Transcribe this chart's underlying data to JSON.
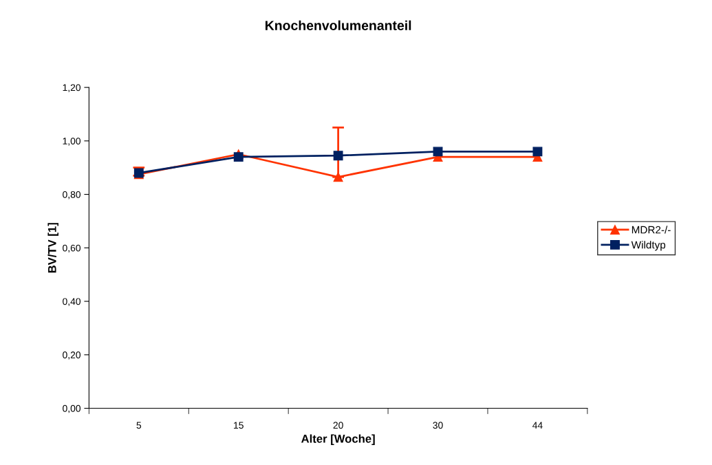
{
  "chart_data": {
    "type": "line",
    "title": "Knochenvolumenanteil",
    "xlabel": "Alter [Woche]",
    "ylabel": "BV/TV [1]",
    "categories": [
      "5",
      "15",
      "20",
      "30",
      "44"
    ],
    "series": [
      {
        "name": "MDR2-/-",
        "color": "#ff3300",
        "marker": "triangle",
        "values": [
          0.875,
          0.95,
          0.865,
          0.94,
          0.94
        ],
        "errors": [
          [
            0.87,
            0.9
          ],
          null,
          [
            0.865,
            1.05
          ],
          null,
          null
        ]
      },
      {
        "name": "Wildtyp",
        "color": "#002060",
        "marker": "square",
        "values": [
          0.88,
          0.94,
          0.945,
          0.96,
          0.96
        ]
      }
    ],
    "ylim": [
      0,
      1.2
    ],
    "yticks": [
      {
        "value": 0,
        "label": "0,00"
      },
      {
        "value": 0.2,
        "label": "0,20"
      },
      {
        "value": 0.4,
        "label": "0,40"
      },
      {
        "value": 0.6,
        "label": "0,60"
      },
      {
        "value": 0.8,
        "label": "0,80"
      },
      {
        "value": 1.0,
        "label": "1,00"
      },
      {
        "value": 1.2,
        "label": "1,20"
      }
    ],
    "grid": false,
    "legend": "right",
    "line_style": "solid"
  }
}
